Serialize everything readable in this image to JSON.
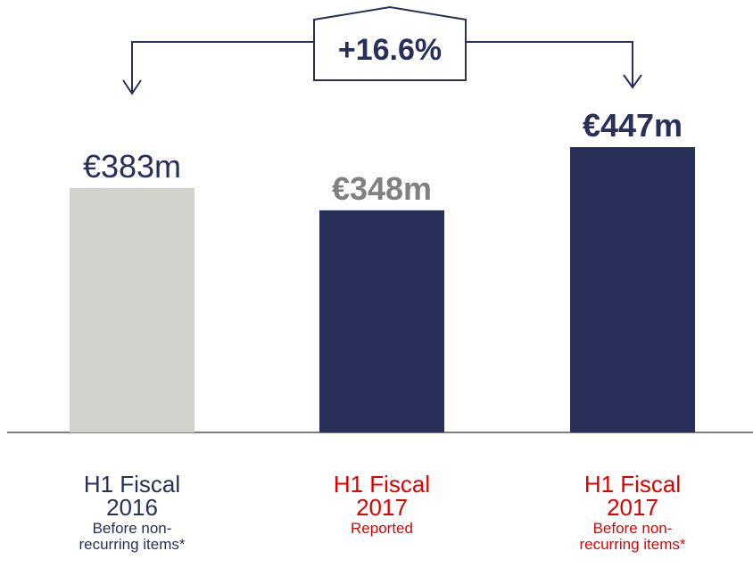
{
  "chart_data": {
    "type": "bar",
    "categories": [
      "H1 Fiscal 2016",
      "H1 Fiscal 2017",
      "H1 Fiscal 2017"
    ],
    "category_notes": [
      "Before non-recurring items*",
      "Reported",
      "Before non-recurring items*"
    ],
    "category_colors": [
      "#28305a",
      "#e00000",
      "#e00000"
    ],
    "values": [
      383,
      348,
      447
    ],
    "value_labels": [
      "€383m",
      "€348m",
      "€447m"
    ],
    "value_label_colors": [
      "#28305a",
      "#808080",
      "#28305a"
    ],
    "colors": [
      "#d3d1cb",
      "#28305a",
      "#28305a"
    ],
    "annotation": "+16.6%"
  }
}
